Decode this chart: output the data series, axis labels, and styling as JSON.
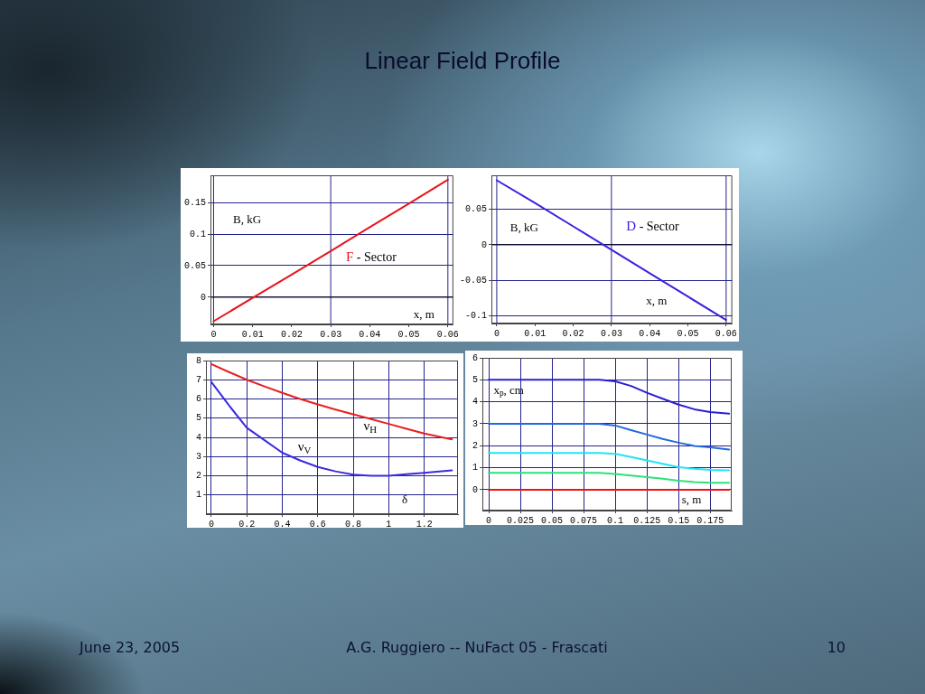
{
  "chart_data": [
    {
      "type": "other",
      "title": "Linear Field Profile",
      "annotations": [
        "June 23, 2005",
        "A.G. Ruggiero -- NuFact 05 - Frascati",
        "10"
      ]
    },
    {
      "type": "line",
      "xlabel": "x, m",
      "ylabel": "B, kG",
      "annotations": [
        "F - Sector"
      ],
      "x": [
        0,
        0.01,
        0.02,
        0.03,
        0.04,
        0.05,
        0.06
      ],
      "series": [
        {
          "color": "#e8141c",
          "values": [
            -0.038,
            -0.001,
            0.036,
            0.073,
            0.111,
            0.148,
            0.186
          ]
        }
      ],
      "xlim": [
        -0.0008,
        0.0614
      ],
      "ylim": [
        -0.043,
        0.193
      ],
      "xticks": [
        0,
        0.01,
        0.02,
        0.03,
        0.04,
        0.05,
        0.06
      ],
      "yticks": [
        0,
        0.05,
        0.1,
        0.15
      ],
      "grid": "y",
      "ref_lines": [
        {
          "axis": "x",
          "value": 0,
          "color": "#23238f"
        },
        {
          "axis": "x",
          "value": 0.03,
          "color": "#23238f"
        },
        {
          "axis": "x",
          "value": 0.06,
          "color": "#23238f"
        },
        {
          "axis": "y",
          "value": 0,
          "color": "#000000"
        }
      ]
    },
    {
      "type": "line",
      "xlabel": "x, m",
      "ylabel": "B, kG",
      "annotations": [
        "D - Sector"
      ],
      "x": [
        0,
        0.01,
        0.02,
        0.03,
        0.04,
        0.05,
        0.06
      ],
      "series": [
        {
          "color": "#3a22e0",
          "values": [
            0.091,
            0.059,
            0.026,
            -0.007,
            -0.04,
            -0.073,
            -0.106
          ]
        }
      ],
      "xlim": [
        -0.0014,
        0.0616
      ],
      "ylim": [
        -0.111,
        0.098
      ],
      "xticks": [
        0,
        0.01,
        0.02,
        0.03,
        0.04,
        0.05,
        0.06
      ],
      "yticks": [
        -0.1,
        -0.05,
        0,
        0.05
      ],
      "grid": "y",
      "ref_lines": [
        {
          "axis": "x",
          "value": 0,
          "color": "#23238f"
        },
        {
          "axis": "x",
          "value": 0.03,
          "color": "#23238f"
        },
        {
          "axis": "x",
          "value": 0.06,
          "color": "#23238f"
        },
        {
          "axis": "y",
          "value": 0,
          "color": "#000000"
        }
      ]
    },
    {
      "type": "line",
      "xlabel": "δ",
      "x": [
        0,
        0.1,
        0.2,
        0.3,
        0.4,
        0.5,
        0.6,
        0.7,
        0.8,
        0.9,
        1.0,
        1.1,
        1.2,
        1.356
      ],
      "series": [
        {
          "name": "ν$_{H}$",
          "color": "#e82020",
          "values": [
            7.82,
            7.4,
            7.0,
            6.65,
            6.32,
            6.0,
            5.72,
            5.45,
            5.2,
            4.95,
            4.7,
            4.45,
            4.2,
            3.89
          ]
        },
        {
          "name": "ν$_{V}$",
          "color": "#3a2ae0",
          "values": [
            6.89,
            5.66,
            4.5,
            3.85,
            3.2,
            2.8,
            2.46,
            2.23,
            2.06,
            2.0,
            2.0,
            2.08,
            2.15,
            2.28
          ]
        }
      ],
      "xlim": [
        -0.03,
        1.39
      ],
      "ylim": [
        0,
        8
      ],
      "xticks": [
        0,
        0.2,
        0.4,
        0.6,
        0.8,
        1,
        1.2
      ],
      "yticks": [
        1,
        2,
        3,
        4,
        5,
        6,
        7,
        8
      ],
      "grid": true
    },
    {
      "type": "line",
      "xlabel": "s, m",
      "ylabel": "x$_{p}$, cm",
      "x": [
        0,
        0.0875,
        0.1,
        0.1125,
        0.125,
        0.1375,
        0.15,
        0.1625,
        0.175,
        0.19
      ],
      "series": [
        {
          "color": "#2c1fd0",
          "values": [
            5,
            5,
            4.93,
            4.72,
            4.41,
            4.14,
            3.87,
            3.66,
            3.53,
            3.46
          ]
        },
        {
          "color": "#2468e0",
          "values": [
            3,
            3,
            2.92,
            2.71,
            2.51,
            2.31,
            2.14,
            1.99,
            1.93,
            1.83
          ]
        },
        {
          "color": "#22e4f4",
          "values": [
            1.67,
            1.67,
            1.63,
            1.49,
            1.33,
            1.18,
            1.02,
            0.95,
            0.9,
            0.88
          ]
        },
        {
          "color": "#30e07a",
          "values": [
            0.77,
            0.77,
            0.72,
            0.64,
            0.57,
            0.5,
            0.41,
            0.35,
            0.31,
            0.31
          ]
        },
        {
          "color": "#f01010",
          "values": [
            0,
            0,
            0,
            0,
            0,
            0,
            0,
            0,
            0,
            0
          ]
        }
      ],
      "xlim": [
        -0.005,
        0.192
      ],
      "ylim": [
        -0.95,
        6
      ],
      "xticks": [
        0,
        0.025,
        0.05,
        0.075,
        0.1,
        0.125,
        0.15,
        0.175
      ],
      "yticks": [
        0,
        1,
        2,
        3,
        4,
        5,
        6
      ],
      "grid": true
    }
  ]
}
